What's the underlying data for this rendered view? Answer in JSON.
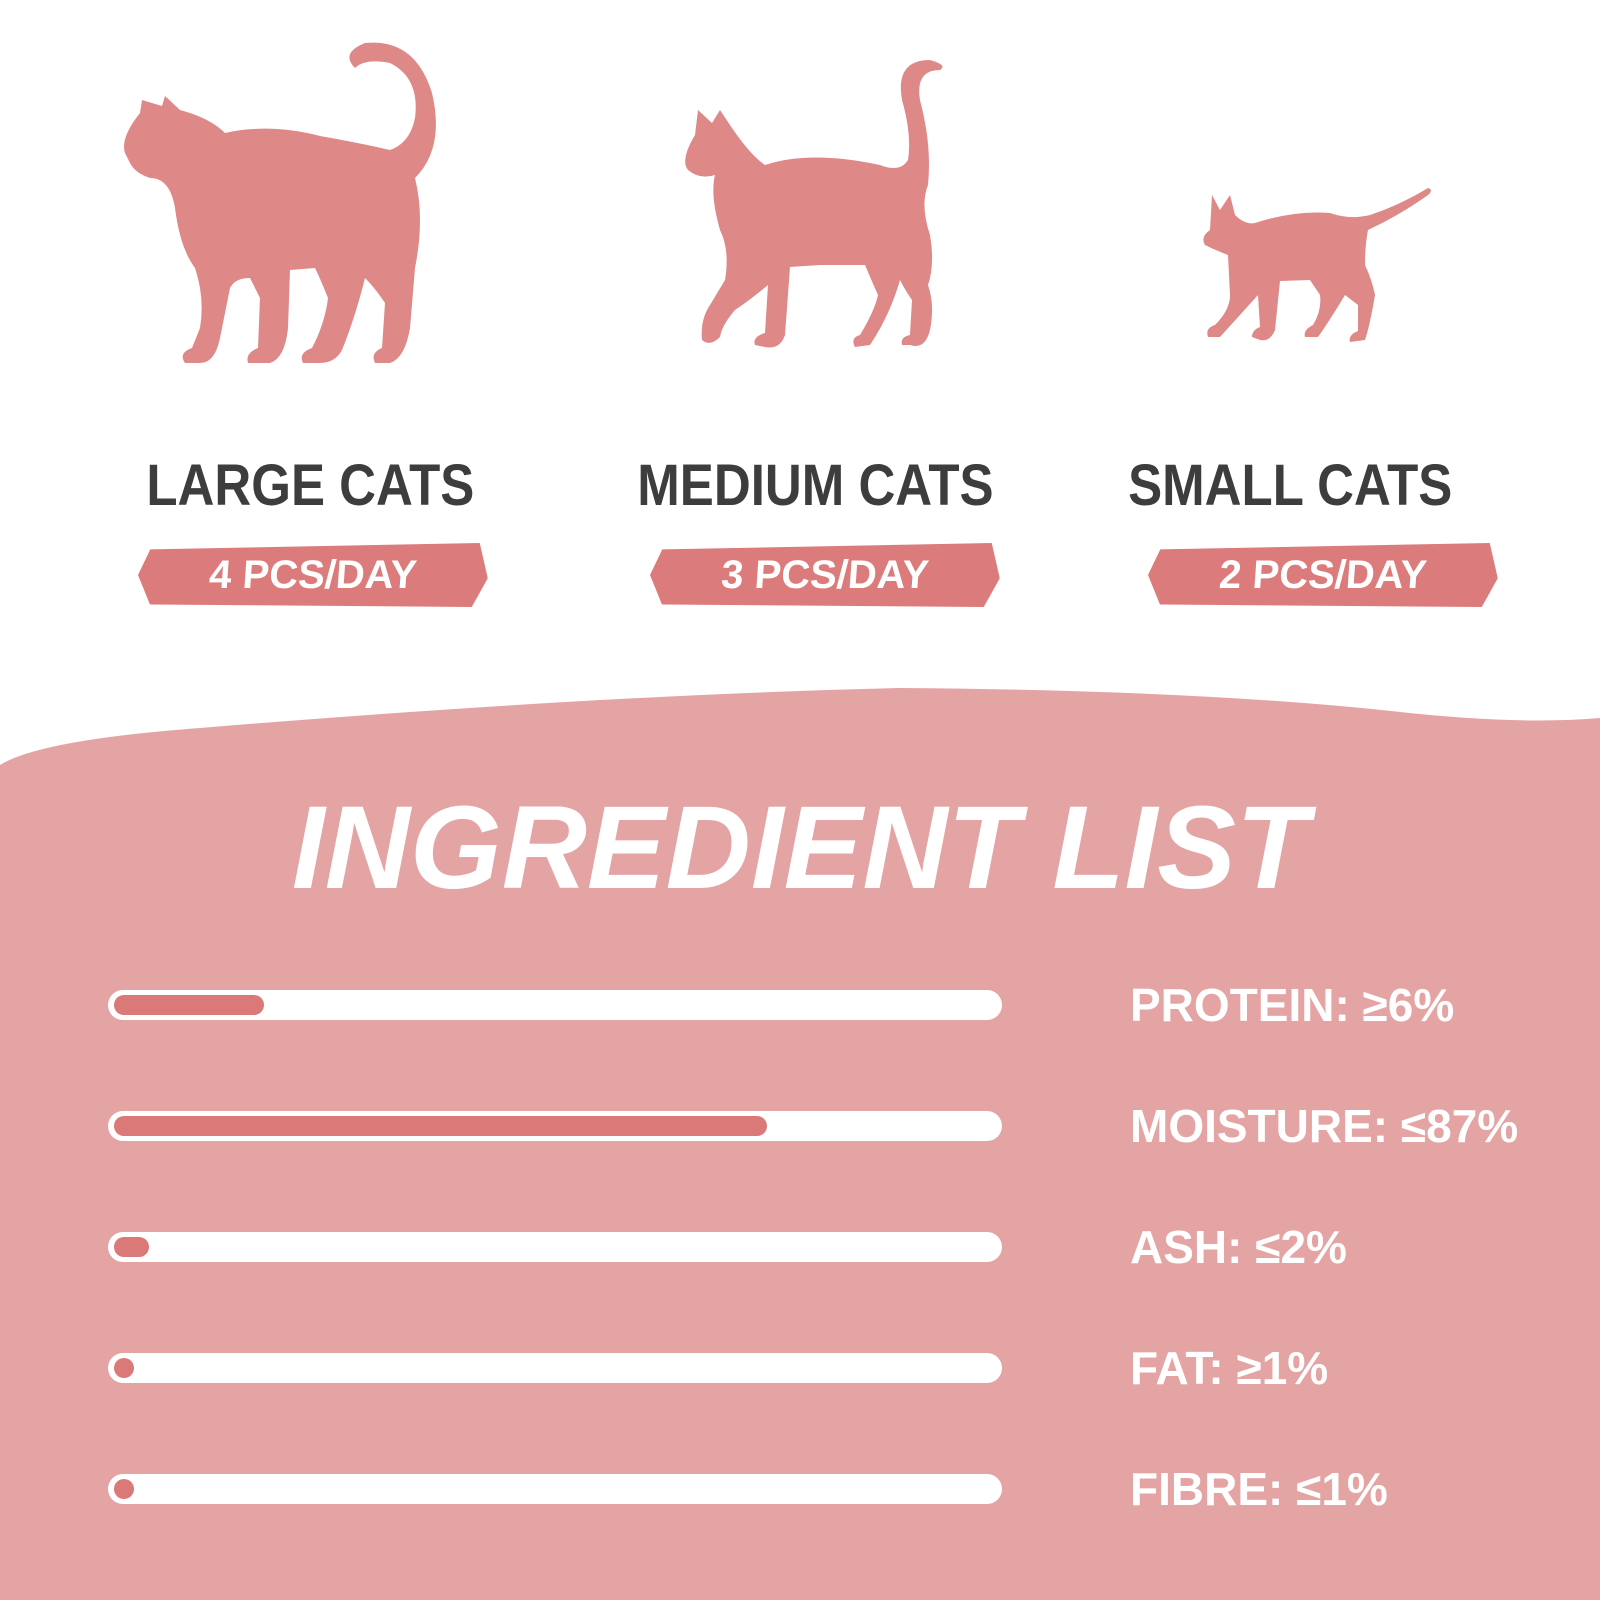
{
  "colors": {
    "cat": "#de8888",
    "section_bg": "#e4a4a4",
    "bar_fill": "#db7878",
    "bar_track": "#ffffff",
    "title_text": "#3d3d3d"
  },
  "sizes": [
    {
      "title": "LARGE CATS",
      "dosage": "4 PCS/DAY"
    },
    {
      "title": "MEDIUM CATS",
      "dosage": "3 PCS/DAY"
    },
    {
      "title": "SMALL CATS",
      "dosage": "2 PCS/DAY"
    }
  ],
  "ingredients": {
    "heading": "INGREDIENT LIST",
    "items": [
      {
        "label": "PROTEIN: ≥6%",
        "fill_fraction": 0.17
      },
      {
        "label": "MOISTURE: ≤87%",
        "fill_fraction": 0.74
      },
      {
        "label": "ASH: ≤2%",
        "fill_fraction": 0.04
      },
      {
        "label": "FAT: ≥1%",
        "fill_fraction": 0.02
      },
      {
        "label": "FIBRE: ≤1%",
        "fill_fraction": 0.02
      }
    ]
  }
}
